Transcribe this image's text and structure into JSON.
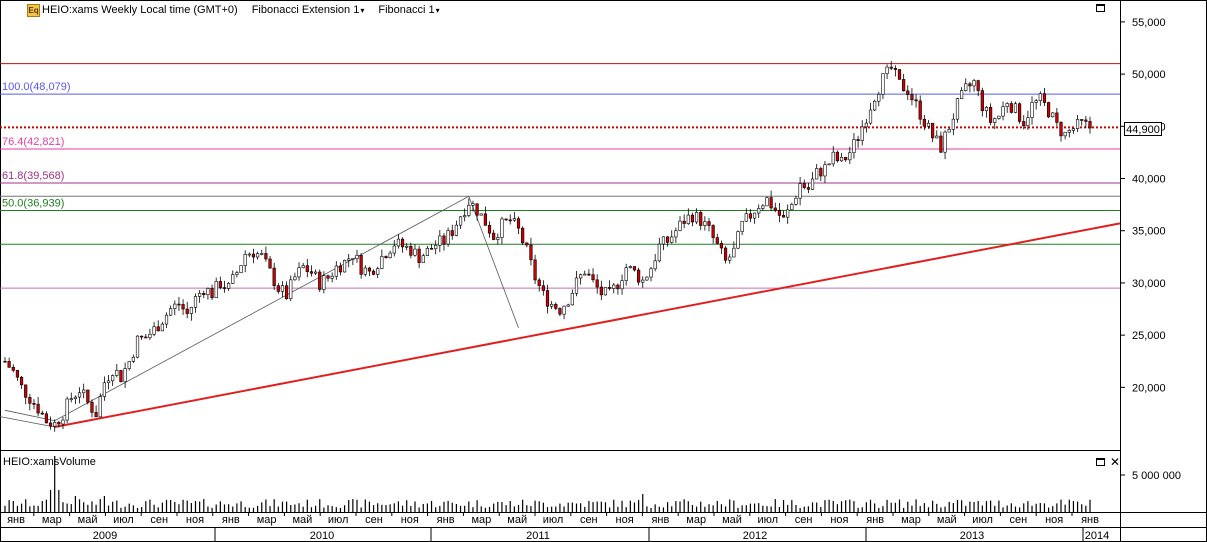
{
  "header": {
    "symbol_label": "HEIO:xams Weekly Local time (GMT+0)",
    "study1_label": "Fibonacci Extension 1",
    "study2_label": "Fibonacci 1",
    "caret": "▾",
    "logo_text": "Eq"
  },
  "volume_panel": {
    "label": "HEIO:xamsVolume",
    "axis_label": "5 000 000"
  },
  "last_price_label": "44,900",
  "colors": {
    "candle_up": "#ffffff",
    "candle_down": "#cc0000",
    "trendline": "#e02020",
    "fib_100": "#5a5ae0",
    "fib_764": "#e040a0",
    "fib_618": "#a0308a",
    "fib_50": "#208020",
    "resistance": "#c01010",
    "support": "#208020"
  },
  "chart_data": {
    "type": "candlestick",
    "title": "HEIO:xams Weekly Local time (GMT+0)",
    "ylim": [
      14000,
      57000
    ],
    "y_ticks": [
      "55,000",
      "50,000",
      "45,000",
      "40,000",
      "35,000",
      "30,000",
      "25,000",
      "20,000"
    ],
    "y_tick_values": [
      55000,
      50000,
      45000,
      40000,
      35000,
      30000,
      25000,
      20000
    ],
    "fib_levels": [
      {
        "label": "100.0(48,079)",
        "value": 48079,
        "color": "#5a5ae0"
      },
      {
        "label": "76.4(42,821)",
        "value": 42821,
        "color": "#e040a0"
      },
      {
        "label": "61.8(39,568)",
        "value": 39568,
        "color": "#a0308a"
      },
      {
        "label": "50.0(36,939)",
        "value": 36939,
        "color": "#208020"
      }
    ],
    "extra_levels": [
      51000,
      38300,
      33700,
      29500
    ],
    "last_price": 44900,
    "trendline": {
      "from": [
        "2009-03",
        16200
      ],
      "to": [
        "2014-01",
        35700
      ]
    },
    "fib_extension_path": [
      [
        "2008-12",
        17000
      ],
      [
        "2009-03",
        16800
      ],
      [
        "2011-05",
        38300
      ],
      [
        "2011-07",
        25700
      ]
    ],
    "month_labels": [
      "янв",
      "мар",
      "май",
      "июл",
      "сен",
      "ноя",
      "янв",
      "мар",
      "май",
      "июл",
      "сен",
      "ноя",
      "янв",
      "мар",
      "май",
      "июл",
      "сен",
      "ноя",
      "янв",
      "мар",
      "май",
      "июл",
      "сен",
      "ноя",
      "янв",
      "мар",
      "май",
      "июл",
      "сен",
      "ноя",
      "янв"
    ],
    "year_labels": [
      "2009",
      "2010",
      "2011",
      "2012",
      "2013",
      "2014"
    ],
    "price_path": [
      [
        0,
        22500
      ],
      [
        2,
        21500
      ],
      [
        4,
        20000
      ],
      [
        6,
        19000
      ],
      [
        8,
        18000
      ],
      [
        10,
        16800
      ],
      [
        12,
        16500
      ],
      [
        14,
        17500
      ],
      [
        16,
        19000
      ],
      [
        18,
        19800
      ],
      [
        20,
        18500
      ],
      [
        22,
        17500
      ],
      [
        24,
        20500
      ],
      [
        26,
        21800
      ],
      [
        28,
        21000
      ],
      [
        30,
        22500
      ],
      [
        32,
        24500
      ],
      [
        34,
        24800
      ],
      [
        36,
        25500
      ],
      [
        38,
        26500
      ],
      [
        40,
        27500
      ],
      [
        42,
        28000
      ],
      [
        44,
        27000
      ],
      [
        46,
        28500
      ],
      [
        48,
        29500
      ],
      [
        50,
        29000
      ],
      [
        52,
        30000
      ],
      [
        54,
        29500
      ],
      [
        56,
        31000
      ],
      [
        58,
        32800
      ],
      [
        60,
        33000
      ],
      [
        62,
        32500
      ],
      [
        64,
        31000
      ],
      [
        66,
        29500
      ],
      [
        68,
        28800
      ],
      [
        70,
        30500
      ],
      [
        72,
        31500
      ],
      [
        74,
        31000
      ],
      [
        76,
        30000
      ],
      [
        78,
        30500
      ],
      [
        80,
        31500
      ],
      [
        82,
        32000
      ],
      [
        84,
        32800
      ],
      [
        86,
        31500
      ],
      [
        88,
        31000
      ],
      [
        90,
        32000
      ],
      [
        92,
        33000
      ],
      [
        94,
        33800
      ],
      [
        96,
        33500
      ],
      [
        98,
        33200
      ],
      [
        100,
        32500
      ],
      [
        102,
        33000
      ],
      [
        104,
        33700
      ],
      [
        106,
        34000
      ],
      [
        108,
        35000
      ],
      [
        110,
        36500
      ],
      [
        112,
        37800
      ],
      [
        114,
        37000
      ],
      [
        116,
        35800
      ],
      [
        118,
        34500
      ],
      [
        120,
        35500
      ],
      [
        122,
        36000
      ],
      [
        124,
        35000
      ],
      [
        126,
        33000
      ],
      [
        128,
        30500
      ],
      [
        130,
        28800
      ],
      [
        132,
        28000
      ],
      [
        134,
        27500
      ],
      [
        136,
        28500
      ],
      [
        138,
        30000
      ],
      [
        140,
        31200
      ],
      [
        142,
        30000
      ],
      [
        144,
        29000
      ],
      [
        146,
        28800
      ],
      [
        148,
        30000
      ],
      [
        150,
        31500
      ],
      [
        152,
        31000
      ],
      [
        154,
        30200
      ],
      [
        156,
        31500
      ],
      [
        158,
        33500
      ],
      [
        160,
        34000
      ],
      [
        162,
        35000
      ],
      [
        164,
        36000
      ],
      [
        166,
        36500
      ],
      [
        168,
        36000
      ],
      [
        170,
        35000
      ],
      [
        172,
        33500
      ],
      [
        174,
        32000
      ],
      [
        176,
        33000
      ],
      [
        178,
        35500
      ],
      [
        180,
        36500
      ],
      [
        182,
        37500
      ],
      [
        184,
        38000
      ],
      [
        186,
        37000
      ],
      [
        188,
        36000
      ],
      [
        190,
        37500
      ],
      [
        192,
        39500
      ],
      [
        194,
        39000
      ],
      [
        196,
        40500
      ],
      [
        198,
        41000
      ],
      [
        200,
        42000
      ],
      [
        202,
        41500
      ],
      [
        204,
        42500
      ],
      [
        206,
        44000
      ],
      [
        208,
        46000
      ],
      [
        210,
        48000
      ],
      [
        212,
        49500
      ],
      [
        214,
        50500
      ],
      [
        216,
        49000
      ],
      [
        218,
        48500
      ],
      [
        220,
        47000
      ],
      [
        222,
        45500
      ],
      [
        224,
        44000
      ],
      [
        226,
        43000
      ],
      [
        228,
        45000
      ],
      [
        230,
        47000
      ],
      [
        232,
        48500
      ],
      [
        234,
        49200
      ],
      [
        236,
        47000
      ],
      [
        238,
        45500
      ],
      [
        240,
        46000
      ],
      [
        242,
        47500
      ],
      [
        244,
        46500
      ],
      [
        246,
        45500
      ],
      [
        248,
        47000
      ],
      [
        250,
        47500
      ],
      [
        252,
        46500
      ],
      [
        254,
        45000
      ],
      [
        256,
        44200
      ],
      [
        258,
        44800
      ],
      [
        260,
        45200
      ],
      [
        262,
        44900
      ]
    ],
    "volume_peak_week": 12
  }
}
